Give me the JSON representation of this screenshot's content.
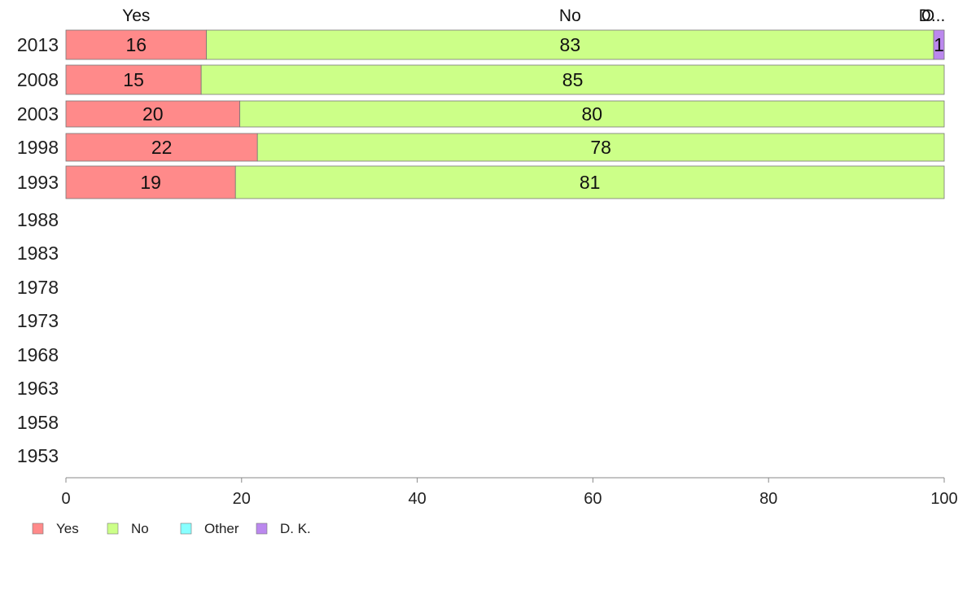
{
  "chart_data": {
    "type": "bar",
    "orientation": "horizontal",
    "stacked": true,
    "categories": [
      "2013",
      "2008",
      "2003",
      "1998",
      "1993",
      "1988",
      "1983",
      "1978",
      "1973",
      "1968",
      "1963",
      "1958",
      "1953"
    ],
    "series": [
      {
        "name": "Yes",
        "color": "#ff8a8a",
        "values": [
          16,
          15.4,
          19.8,
          21.8,
          19.3,
          null,
          null,
          null,
          null,
          null,
          null,
          null,
          null
        ],
        "labels": [
          "16",
          "15",
          "20",
          "22",
          "19",
          "",
          "",
          "",
          "",
          "",
          "",
          "",
          ""
        ]
      },
      {
        "name": "No",
        "color": "#ccff88",
        "values": [
          82.8,
          84.6,
          80.2,
          78.2,
          80.7,
          null,
          null,
          null,
          null,
          null,
          null,
          null,
          null
        ],
        "labels": [
          "83",
          "85",
          "80",
          "78",
          "81",
          "",
          "",
          "",
          "",
          "",
          "",
          "",
          ""
        ]
      },
      {
        "name": "Other",
        "color": "#88ffff",
        "values": [
          0,
          0,
          0,
          0,
          0,
          null,
          null,
          null,
          null,
          null,
          null,
          null,
          null
        ],
        "labels": [
          "",
          "",
          "",
          "",
          "",
          "",
          "",
          "",
          "",
          "",
          "",
          "",
          ""
        ]
      },
      {
        "name": "D. K.",
        "color": "#bb88ee",
        "values": [
          1.2,
          0,
          0,
          0,
          0,
          null,
          null,
          null,
          null,
          null,
          null,
          null,
          null
        ],
        "labels": [
          "1",
          "",
          "",
          "",
          "",
          "",
          "",
          "",
          "",
          "",
          "",
          "",
          ""
        ]
      }
    ],
    "top_headers": [
      "Yes",
      "No",
      "O",
      "D..."
    ],
    "xlim": [
      0,
      100
    ],
    "xticks": [
      "0",
      "20",
      "40",
      "60",
      "80",
      "100"
    ],
    "grid": false,
    "legend": {
      "position": "bottom-left",
      "entries": [
        "Yes",
        "No",
        "Other",
        "D. K."
      ]
    }
  }
}
